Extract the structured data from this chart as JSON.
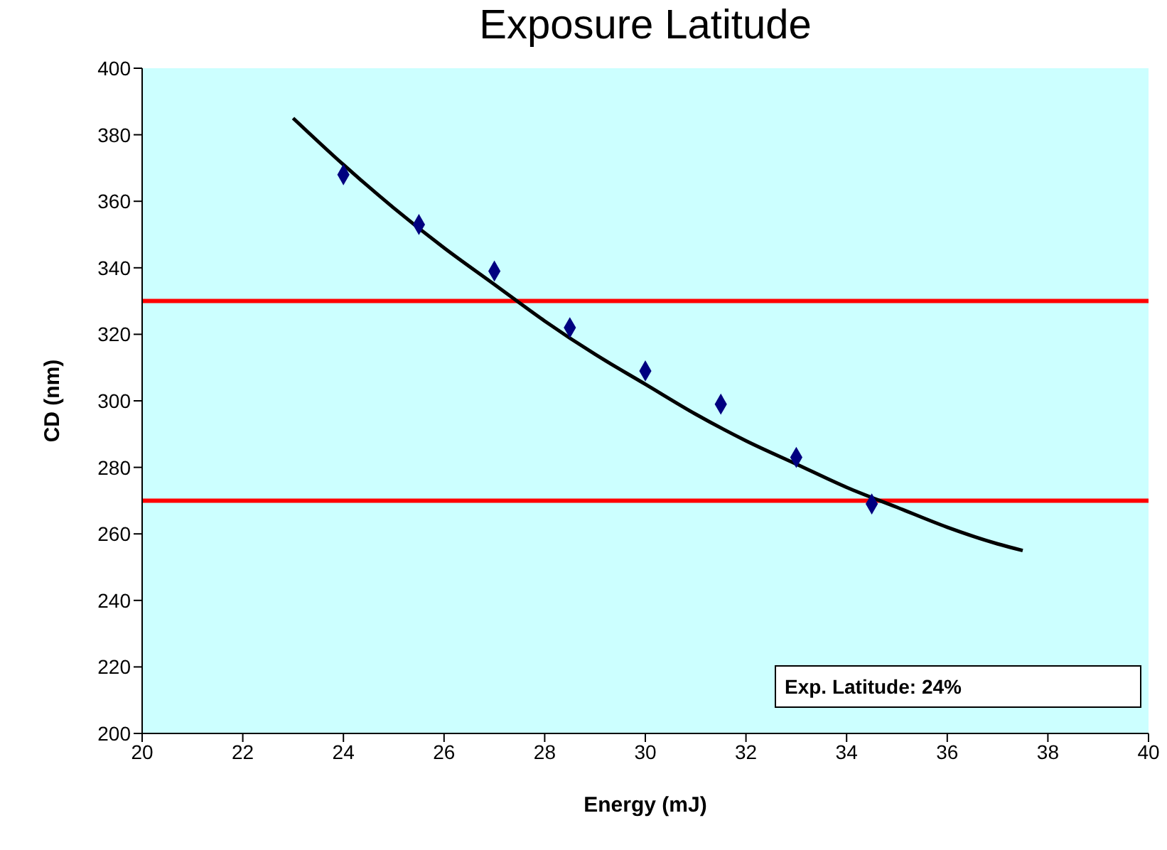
{
  "chart_data": {
    "type": "scatter",
    "title": "Exposure Latitude",
    "xlabel": "Energy (mJ)",
    "ylabel": "CD (nm)",
    "xlim": [
      20,
      40
    ],
    "xticks": [
      20,
      22,
      24,
      26,
      28,
      30,
      32,
      34,
      36,
      38,
      40
    ],
    "ylim": [
      200,
      400
    ],
    "yticks": [
      200,
      220,
      240,
      260,
      280,
      300,
      320,
      340,
      360,
      380,
      400
    ],
    "grid": false,
    "marker": "diamond",
    "series": [
      {
        "color": "#000080",
        "x": [
          24,
          25.5,
          27,
          28.5,
          30,
          31.5,
          33,
          34.5
        ],
        "values": [
          368,
          353,
          339,
          322,
          309,
          299,
          283,
          269
        ]
      },
      {
        "type": "line",
        "color": "#000000",
        "marker": "none",
        "x": [
          23,
          24,
          25,
          26,
          27,
          28,
          29,
          30,
          31,
          32,
          33,
          34,
          35,
          36,
          37,
          37.5
        ],
        "values": [
          385,
          371,
          358,
          346,
          335,
          324,
          314,
          305,
          296,
          288,
          281,
          274,
          268,
          262,
          257,
          255
        ]
      }
    ],
    "ref_lines": [
      {
        "axis": "y",
        "value": 330,
        "color": "#ff0000"
      },
      {
        "axis": "y",
        "value": 270,
        "color": "#ff0000"
      }
    ],
    "annotations": [
      "Exp. Latitude: 24%"
    ]
  }
}
